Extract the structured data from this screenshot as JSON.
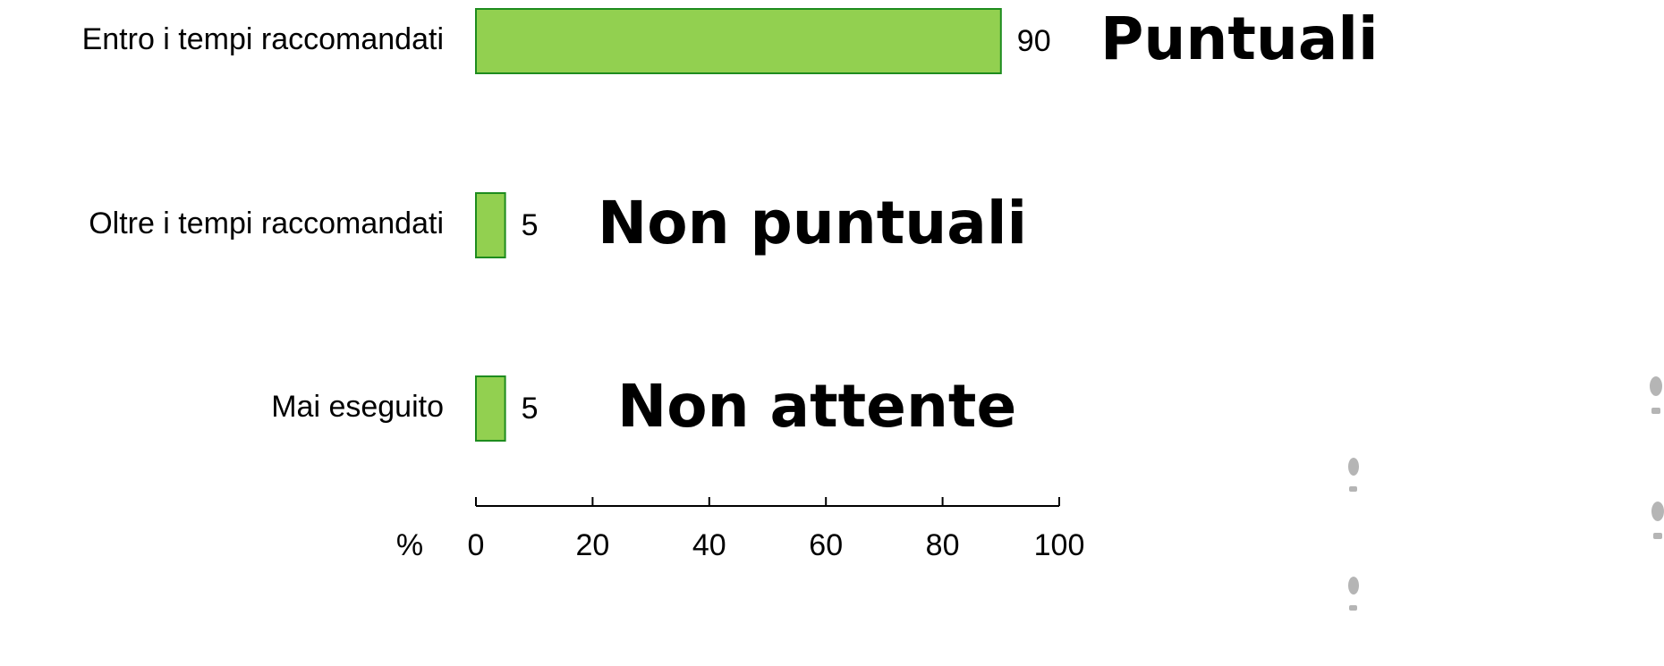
{
  "chart_data": {
    "type": "bar",
    "orientation": "horizontal",
    "categories": [
      "Entro i tempi raccomandati",
      "Oltre i tempi raccomandati",
      "Mai eseguito"
    ],
    "values": [
      90,
      5,
      5
    ],
    "color": "#92d050",
    "edge_color": "#1e8c1e",
    "x_label": "%",
    "xlim": [
      0,
      100
    ],
    "xticks": [
      0,
      20,
      40,
      60,
      80,
      100
    ],
    "annotations": [
      {
        "text": "Puntuali",
        "color": "#139c00"
      },
      {
        "text": "Non puntuali",
        "color": "#ff9933"
      },
      {
        "text": "Non attente",
        "color": "#ff5757"
      }
    ]
  }
}
